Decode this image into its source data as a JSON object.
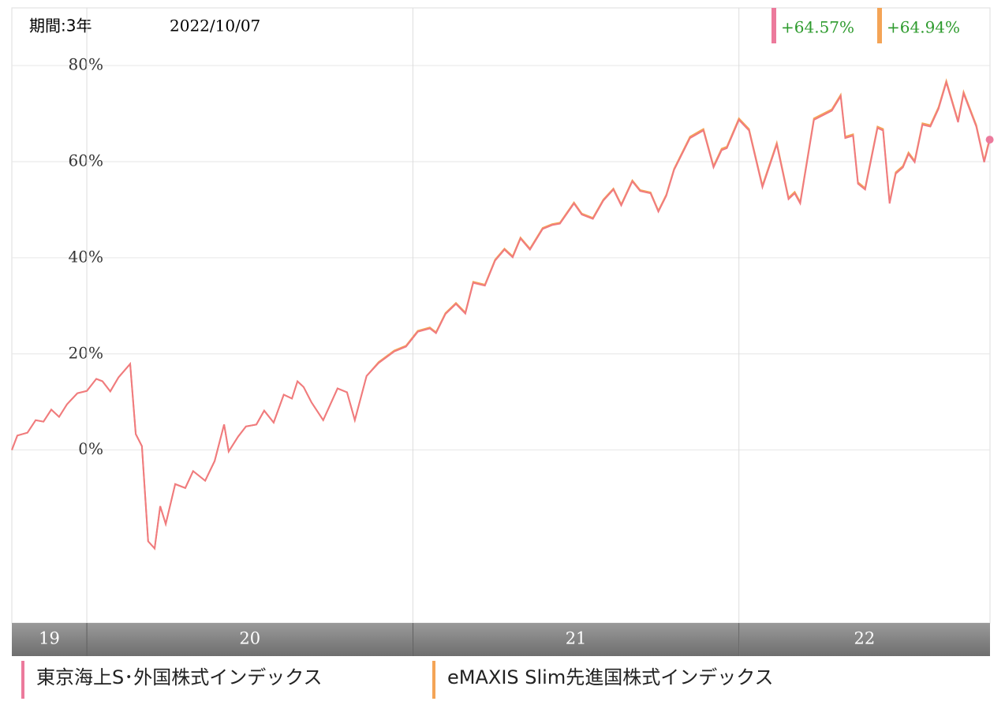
{
  "header": {
    "period": "期間:3年",
    "date": "2022/10/07"
  },
  "chart_data": {
    "type": "line",
    "x": [
      2019.77,
      2019.787,
      2019.818,
      2019.843,
      2019.867,
      2019.891,
      2019.915,
      2019.939,
      2019.971,
      2020.0,
      2020.029,
      2020.048,
      2020.072,
      2020.097,
      2020.133,
      2020.15,
      2020.169,
      2020.188,
      2020.208,
      2020.225,
      2020.242,
      2020.271,
      2020.302,
      2020.326,
      2020.363,
      2020.392,
      2020.421,
      2020.435,
      2020.464,
      2020.488,
      2020.52,
      2020.544,
      2020.573,
      2020.604,
      2020.629,
      2020.646,
      2020.665,
      2020.689,
      2020.725,
      2020.769,
      2020.798,
      2020.822,
      2020.858,
      2020.895,
      2020.943,
      2020.979,
      2021.015,
      2021.052,
      2021.071,
      2021.1,
      2021.132,
      2021.161,
      2021.185,
      2021.221,
      2021.252,
      2021.281,
      2021.306,
      2021.33,
      2021.359,
      2021.398,
      2021.427,
      2021.451,
      2021.494,
      2021.518,
      2021.552,
      2021.584,
      2021.615,
      2021.639,
      2021.673,
      2021.697,
      2021.729,
      2021.753,
      2021.777,
      2021.801,
      2021.85,
      2021.891,
      2021.922,
      2021.947,
      2021.963,
      2022.0,
      2022.031,
      2022.072,
      2022.116,
      2022.152,
      2022.171,
      2022.188,
      2022.23,
      2022.285,
      2022.312,
      2022.326,
      2022.35,
      2022.365,
      2022.387,
      2022.425,
      2022.442,
      2022.462,
      2022.481,
      2022.503,
      2022.52,
      2022.539,
      2022.563,
      2022.587,
      2022.612,
      2022.636,
      2022.672,
      2022.689,
      2022.728,
      2022.752,
      2022.769
    ],
    "series": [
      {
        "name": "東京海上S･外国株式インデックス",
        "color": "#ec7a9c",
        "line_color": "#f07a80",
        "end_label": "+64.57%",
        "values": [
          0,
          3,
          3.6,
          6.2,
          5.9,
          8.4,
          6.9,
          9.5,
          11.8,
          12.3,
          14.8,
          14.3,
          12.2,
          15.1,
          17.9,
          3.3,
          0.8,
          -19,
          -20.5,
          -11.7,
          -15.4,
          -7.1,
          -7.9,
          -4.4,
          -6.4,
          -2.3,
          5.3,
          -0.3,
          2.8,
          4.9,
          5.3,
          8.2,
          5.7,
          11.5,
          10.7,
          14.3,
          13.1,
          9.9,
          6.2,
          12.8,
          12,
          6.2,
          15.4,
          18.1,
          20.5,
          21.5,
          24.6,
          25.3,
          24.3,
          28.3,
          30.4,
          28.4,
          34.8,
          34.2,
          39.4,
          41.7,
          40.1,
          44,
          41.7,
          46,
          46.8,
          47.1,
          51.3,
          49,
          48.1,
          51.9,
          54.2,
          50.9,
          55.9,
          53.9,
          53.4,
          49.6,
          52.9,
          58.3,
          64.9,
          66.5,
          58.8,
          62.4,
          62.8,
          68.7,
          66.5,
          54.7,
          63.6,
          52.2,
          53.4,
          51.3,
          68.7,
          70.6,
          73.6,
          64.9,
          65.4,
          55.4,
          54.2,
          67,
          66.5,
          51.3,
          57.5,
          58.8,
          61.6,
          59.9,
          67.7,
          67.3,
          71,
          76.5,
          68.2,
          74.2,
          67.3,
          59.9,
          64.57
        ]
      },
      {
        "name": "eMAXIS Slim先進国株式インデックス",
        "color": "#f4a456",
        "line_color": "#f4a456",
        "end_label": "+64.94%",
        "values": [
          0,
          3,
          3.6,
          6.2,
          5.9,
          8.4,
          6.9,
          9.5,
          11.8,
          12.3,
          14.8,
          14.3,
          12.2,
          15.1,
          17.9,
          3.3,
          0.8,
          -19,
          -20.5,
          -11.7,
          -15.4,
          -7.1,
          -7.9,
          -4.4,
          -6.4,
          -2.3,
          5.3,
          -0.3,
          2.8,
          4.9,
          5.3,
          8.2,
          5.7,
          11.5,
          10.7,
          14.3,
          13.1,
          9.9,
          6.2,
          12.8,
          12,
          6.2,
          15.4,
          18.3,
          20.7,
          21.7,
          24.8,
          25.5,
          24.5,
          28.5,
          30.6,
          28.6,
          35,
          34.4,
          39.6,
          41.9,
          40.3,
          44.2,
          41.9,
          46.2,
          47,
          47.3,
          51.5,
          49.2,
          48.3,
          52.1,
          54.4,
          51.1,
          56.1,
          54.1,
          53.6,
          49.8,
          53.1,
          58.5,
          65.2,
          66.8,
          59.1,
          62.7,
          63.1,
          69,
          66.8,
          55,
          63.9,
          52.5,
          53.7,
          51.6,
          69,
          70.9,
          73.9,
          65.2,
          65.7,
          55.7,
          54.5,
          67.3,
          66.8,
          51.6,
          57.8,
          59.1,
          61.9,
          60.2,
          68,
          67.6,
          71.3,
          76.8,
          68.5,
          74.5,
          67.6,
          60.2,
          64.94
        ]
      }
    ],
    "xlim": [
      2019.77,
      2022.77
    ],
    "xticks": [
      2020,
      2021,
      2022
    ],
    "year_labels": [
      "19",
      "20",
      "21",
      "22"
    ],
    "ylim": [
      -36,
      92
    ],
    "yticks": [
      {
        "value": 0,
        "label": "0%"
      },
      {
        "value": 20,
        "label": "20%"
      },
      {
        "value": 40,
        "label": "40%"
      },
      {
        "value": 60,
        "label": "60%"
      },
      {
        "value": 80,
        "label": "80%"
      }
    ],
    "grid": true
  }
}
